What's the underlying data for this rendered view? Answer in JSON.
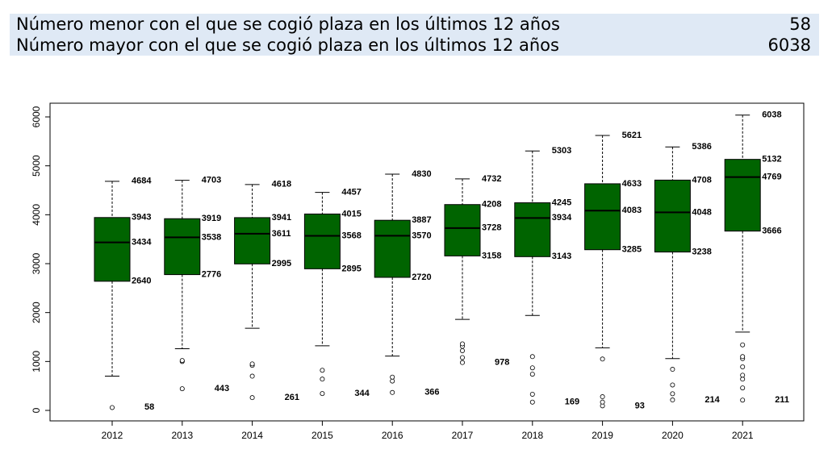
{
  "summary": {
    "min_label": "Número menor con el que se cogió plaza en los últimos 12 años",
    "min_value": "58",
    "max_label": "Número mayor con el que se cogió plaza en los últimos 12 años",
    "max_value": "6038"
  },
  "colors": {
    "summary_background": "#dfe9f5",
    "box_fill": "#006400"
  },
  "chart_data": {
    "type": "boxplot",
    "ylim": [
      0,
      6200
    ],
    "yticks": [
      0,
      1000,
      2000,
      3000,
      4000,
      5000,
      6000
    ],
    "categories": [
      "2012",
      "2013",
      "2014",
      "2015",
      "2016",
      "2017",
      "2018",
      "2019",
      "2020",
      "2021"
    ],
    "boxes": [
      {
        "year": "2012",
        "whisker_low": 700,
        "q1": 2640,
        "median": 3434,
        "q3": 3943,
        "whisker_high": 4684,
        "outliers": [
          58
        ],
        "labels": {
          "max": "4684",
          "q3": "3943",
          "median": "3434",
          "q1": "2640",
          "min": "58"
        }
      },
      {
        "year": "2013",
        "whisker_low": 1260,
        "q1": 2776,
        "median": 3538,
        "q3": 3919,
        "whisker_high": 4703,
        "outliers": [
          443,
          1000,
          1020
        ],
        "labels": {
          "max": "4703",
          "q3": "3919",
          "median": "3538",
          "q1": "2776",
          "min": "443"
        }
      },
      {
        "year": "2014",
        "whisker_low": 1680,
        "q1": 2995,
        "median": 3611,
        "q3": 3941,
        "whisker_high": 4618,
        "outliers": [
          261,
          700,
          920,
          950
        ],
        "labels": {
          "max": "4618",
          "q3": "3941",
          "median": "3611",
          "q1": "2995",
          "min": "261"
        }
      },
      {
        "year": "2015",
        "whisker_low": 1320,
        "q1": 2895,
        "median": 3568,
        "q3": 4015,
        "whisker_high": 4457,
        "outliers": [
          344,
          640,
          820
        ],
        "labels": {
          "max": "4457",
          "q3": "4015",
          "median": "3568",
          "q1": "2895",
          "min": "344"
        }
      },
      {
        "year": "2016",
        "whisker_low": 1110,
        "q1": 2720,
        "median": 3570,
        "q3": 3887,
        "whisker_high": 4830,
        "outliers": [
          366,
          600,
          680
        ],
        "labels": {
          "max": "4830",
          "q3": "3887",
          "median": "3570",
          "q1": "2720",
          "min": "366"
        }
      },
      {
        "year": "2017",
        "whisker_low": 1860,
        "q1": 3158,
        "median": 3728,
        "q3": 4208,
        "whisker_high": 4732,
        "outliers": [
          978,
          1080,
          1220,
          1310,
          1360
        ],
        "labels": {
          "max": "4732",
          "q3": "4208",
          "median": "3728",
          "q1": "3158",
          "min": "978"
        }
      },
      {
        "year": "2018",
        "whisker_low": 1940,
        "q1": 3143,
        "median": 3934,
        "q3": 4245,
        "whisker_high": 5303,
        "outliers": [
          169,
          330,
          740,
          870,
          1100
        ],
        "labels": {
          "max": "5303",
          "q3": "4245",
          "median": "3934",
          "q1": "3143",
          "min": "169"
        }
      },
      {
        "year": "2019",
        "whisker_low": 1280,
        "q1": 3285,
        "median": 4083,
        "q3": 4633,
        "whisker_high": 5621,
        "outliers": [
          93,
          170,
          280,
          1050
        ],
        "labels": {
          "max": "5621",
          "q3": "4633",
          "median": "4083",
          "q1": "3285",
          "min": "93"
        }
      },
      {
        "year": "2020",
        "whisker_low": 1060,
        "q1": 3238,
        "median": 4048,
        "q3": 4708,
        "whisker_high": 5386,
        "outliers": [
          214,
          340,
          520,
          840
        ],
        "labels": {
          "max": "5386",
          "q3": "4708",
          "median": "4048",
          "q1": "3238",
          "min": "214"
        }
      },
      {
        "year": "2021",
        "whisker_low": 1600,
        "q1": 3666,
        "median": 4769,
        "q3": 5132,
        "whisker_high": 6038,
        "outliers": [
          211,
          460,
          640,
          720,
          890,
          1060,
          1100,
          1340
        ],
        "labels": {
          "max": "6038",
          "q3": "5132",
          "median": "4769",
          "q1": "3666",
          "min": "211"
        }
      }
    ]
  }
}
